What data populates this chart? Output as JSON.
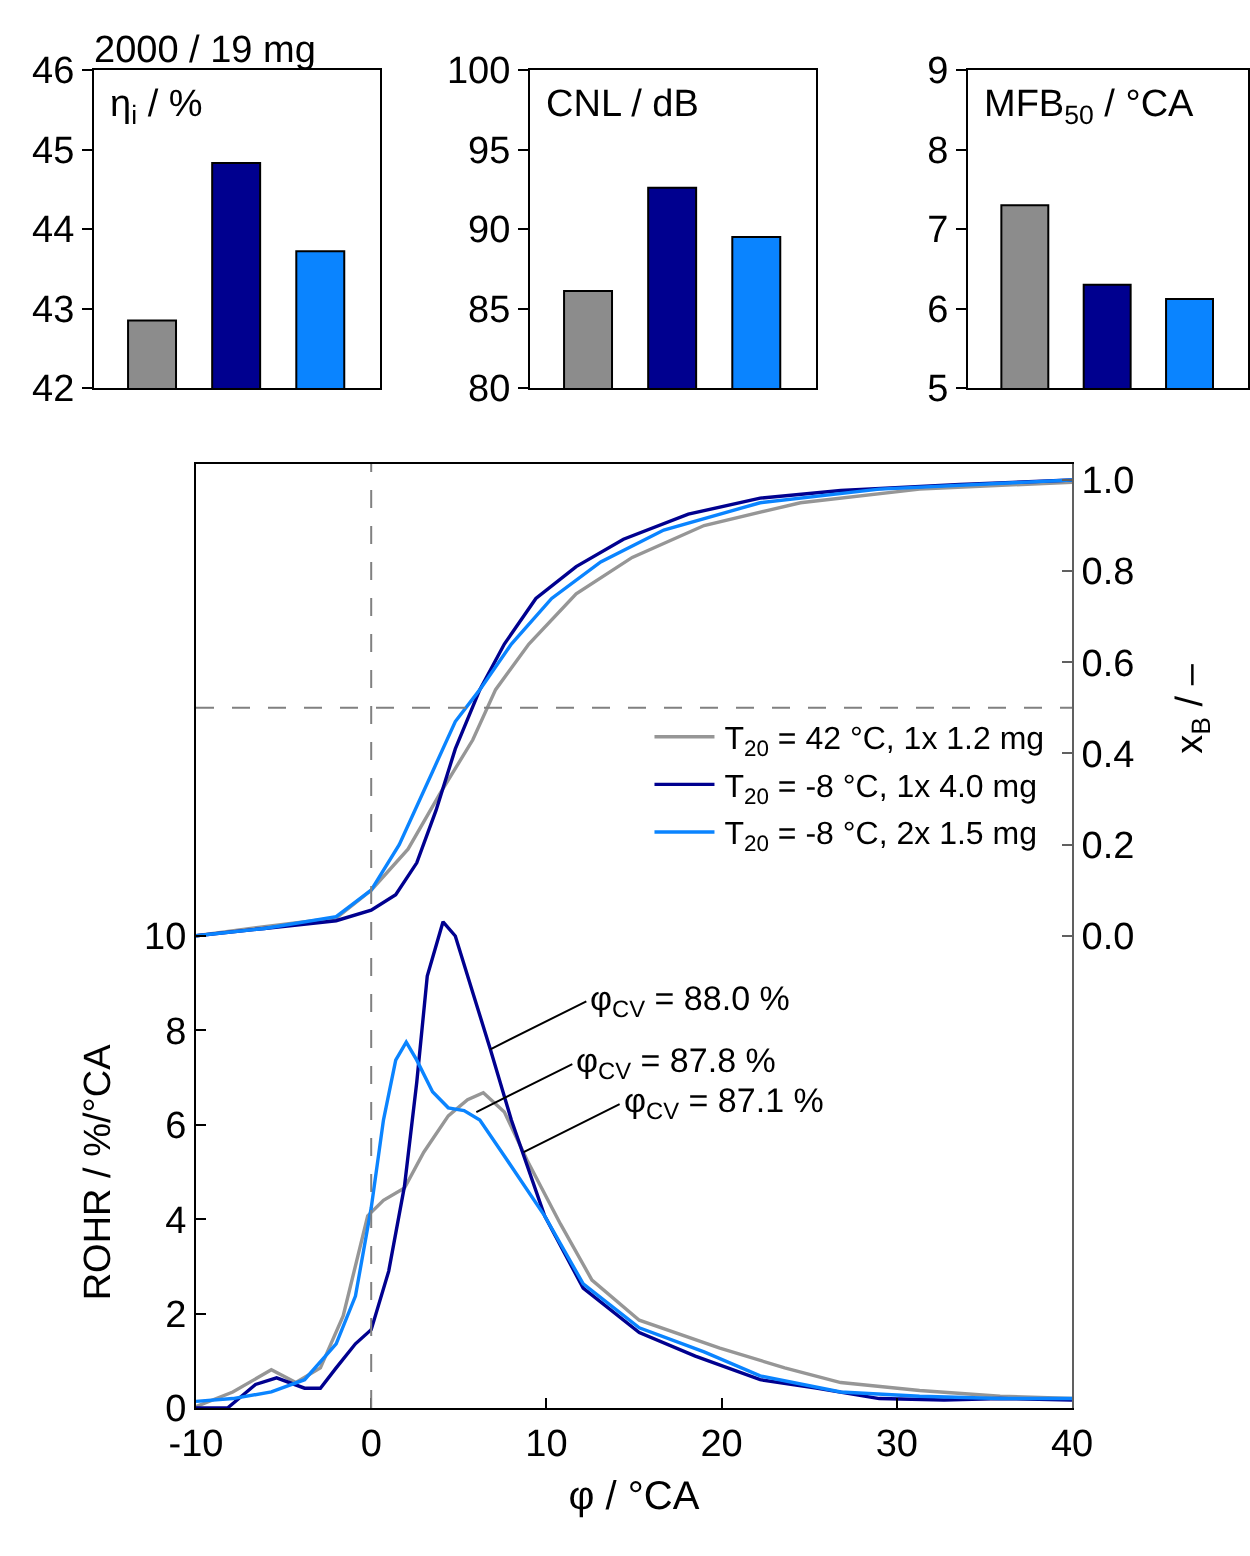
{
  "chart_data": [
    {
      "type": "bar",
      "title": "2000 / 19 mg",
      "ylabel": "η$_{i}$ / %",
      "categories": [
        null,
        null,
        null
      ],
      "values": [
        42.85,
        44.83,
        43.72
      ],
      "colors": [
        "#8c8c8c",
        "#00008f",
        "#0a84ff"
      ],
      "ylim": [
        42,
        46
      ],
      "yticks": [
        42,
        43,
        44,
        45,
        46
      ],
      "grid": false,
      "legend": false,
      "tick_labels": "y"
    },
    {
      "type": "bar",
      "ylabel": "CNL / dB",
      "categories": [
        null,
        null,
        null
      ],
      "values": [
        86.1,
        92.6,
        89.5
      ],
      "colors": [
        "#8c8c8c",
        "#00008f",
        "#0a84ff"
      ],
      "ylim": [
        80,
        100
      ],
      "yticks": [
        80,
        85,
        90,
        95,
        100
      ],
      "grid": false,
      "legend": false,
      "tick_labels": "y"
    },
    {
      "type": "bar",
      "ylabel": "MFB$_{50}$ / °CA",
      "categories": [
        null,
        null,
        null
      ],
      "values": [
        7.3,
        6.3,
        6.12
      ],
      "colors": [
        "#8c8c8c",
        "#00008f",
        "#0a84ff"
      ],
      "ylim": [
        5,
        9
      ],
      "yticks": [
        5,
        6,
        7,
        8,
        9
      ],
      "grid": false,
      "legend": false,
      "tick_labels": "y"
    },
    {
      "type": "line",
      "xlabel": "φ / °CA",
      "ylabel": "ROHR / %/°CA",
      "y2label": "x$_{B}$ / –",
      "xlim": [
        -10,
        40
      ],
      "xticks": [
        -10,
        0,
        10,
        20,
        30,
        40
      ],
      "ylim": [
        0,
        20
      ],
      "yticks": [
        0,
        2,
        4,
        6,
        8,
        10
      ],
      "y2lim": [
        -1.036,
        1.035
      ],
      "y2ticks": [
        {
          "value": 0,
          "label": "0.0"
        },
        {
          "value": 0.2,
          "label": "0.2"
        },
        {
          "value": 0.4,
          "label": "0.4"
        },
        {
          "value": 0.6,
          "label": "0.6"
        },
        {
          "value": 0.8,
          "label": "0.8"
        },
        {
          "value": 1,
          "label": "1.0"
        }
      ],
      "grid": false,
      "legend": "center right",
      "ref_lines": [
        {
          "axis": "x",
          "value": 0,
          "color": "#808080",
          "line_style": "dashed"
        },
        {
          "axis": "y2",
          "value": 0.5,
          "color": "#808080",
          "line_style": "dashed"
        }
      ],
      "annotations": [
        {
          "text": "φ$_{CV}$ = 88.0 %",
          "x": 6.8,
          "y": 7.6
        },
        {
          "text": "φ$_{CV}$ = 87.8 %",
          "x": 6.0,
          "y": 6.27
        },
        {
          "text": "φ$_{CV}$ = 87.1 %",
          "x": 8.7,
          "y": 5.42
        }
      ],
      "series": [
        {
          "name": "T$_{20}$ = 42 °C, 1x 1.2 mg",
          "color": "#969696",
          "axis": "y2",
          "x": [
            -10,
            -6.1,
            -2,
            0,
            2.1,
            3.9,
            5.8,
            7.1,
            9,
            11.7,
            14.9,
            19,
            24.5,
            31.3,
            40
          ],
          "values": [
            0,
            0.02,
            0.039,
            0.1,
            0.19,
            0.31,
            0.43,
            0.54,
            0.64,
            0.75,
            0.83,
            0.9,
            0.95,
            0.98,
            0.995
          ]
        },
        {
          "name": "T$_{20}$ = -8 °C, 1x 4.0 mg",
          "color": "#00008f",
          "axis": "y2",
          "x": [
            -10,
            -6.1,
            -2,
            0,
            1.4,
            2.6,
            3.7,
            4.8,
            6.2,
            7.6,
            9.4,
            11.7,
            14.4,
            18.1,
            22.2,
            26.8,
            33.6,
            40
          ],
          "values": [
            0,
            0.016,
            0.033,
            0.056,
            0.09,
            0.16,
            0.275,
            0.41,
            0.54,
            0.64,
            0.74,
            0.81,
            0.87,
            0.925,
            0.96,
            0.977,
            0.99,
            1.0
          ]
        },
        {
          "name": "T$_{20}$ = -8 °C, 2x 1.5 mg",
          "color": "#0a84ff",
          "axis": "y2",
          "x": [
            -10,
            -6.1,
            -2,
            0,
            1.6,
            3.5,
            4.8,
            6.2,
            8,
            10.3,
            13.1,
            16.7,
            22.2,
            29,
            40
          ],
          "values": [
            0,
            0.016,
            0.042,
            0.1,
            0.2,
            0.36,
            0.47,
            0.54,
            0.64,
            0.74,
            0.82,
            0.89,
            0.95,
            0.98,
            1.0
          ]
        },
        {
          "color": "#969696",
          "x": [
            -10,
            -7.9,
            -5.7,
            -4.3,
            -2.9,
            -1.6,
            -0.2,
            0.7,
            1.9,
            3,
            4.4,
            5.5,
            6.4,
            7.6,
            8.9,
            10.8,
            12.6,
            15.3,
            19.9,
            23.6,
            26.8,
            31.3,
            35.9,
            40
          ],
          "values": [
            0.03,
            0.34,
            0.81,
            0.54,
            0.85,
            1.95,
            4.07,
            4.4,
            4.66,
            5.42,
            6.19,
            6.53,
            6.68,
            6.27,
            5.25,
            3.9,
            2.71,
            1.86,
            1.27,
            0.85,
            0.54,
            0.37,
            0.25,
            0.2
          ]
        },
        {
          "color": "#00008f",
          "x": [
            -10,
            -8.2,
            -6.6,
            -5.4,
            -3.8,
            -2.9,
            -2,
            -0.9,
            0,
            1,
            1.9,
            2.6,
            3.2,
            4.1,
            4.8,
            5.8,
            6.8,
            8,
            9.9,
            12.1,
            15.3,
            18.5,
            22.2,
            25.4,
            29,
            32.7,
            35.9,
            40
          ],
          "values": [
            0,
            0,
            0.5,
            0.64,
            0.42,
            0.42,
            0.85,
            1.36,
            1.66,
            2.9,
            4.7,
            6.9,
            9.15,
            10.3,
            10.0,
            8.8,
            7.6,
            6.1,
            4.07,
            2.54,
            1.6,
            1.1,
            0.6,
            0.42,
            0.2,
            0.17,
            0.2,
            0.17
          ]
        },
        {
          "color": "#0a84ff",
          "x": [
            -10,
            -7.9,
            -5.7,
            -3.8,
            -2,
            -0.9,
            0,
            0.7,
            1.4,
            2,
            2.6,
            3.5,
            4.4,
            5.3,
            6.2,
            7.6,
            9.9,
            12.1,
            15.3,
            19,
            22.2,
            26.8,
            31.3,
            35.9,
            40
          ],
          "values": [
            0.14,
            0.2,
            0.34,
            0.6,
            1.36,
            2.37,
            4.24,
            6.1,
            7.37,
            7.75,
            7.37,
            6.7,
            6.36,
            6.3,
            6.1,
            5.34,
            4.07,
            2.63,
            1.7,
            1.19,
            0.68,
            0.34,
            0.25,
            0.2,
            0.2
          ]
        }
      ]
    }
  ]
}
